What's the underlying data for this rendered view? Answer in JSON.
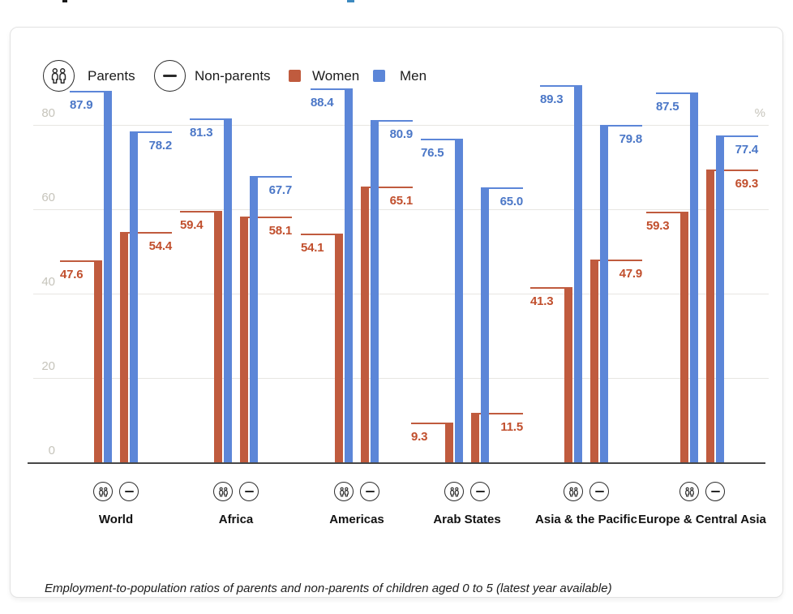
{
  "legend": {
    "parents_label": "Parents",
    "non_parents_label": "Non-parents",
    "women_label": "Women",
    "men_label": "Men",
    "women_color": "#C05B3E",
    "men_color": "#5C86D8"
  },
  "chart_data": {
    "type": "bar",
    "caption": "Employment-to-population ratios of parents and non-parents of children aged 0 to 5 (latest year available)",
    "unit": "%",
    "y_ticks": [
      0,
      20,
      40,
      60,
      80
    ],
    "ylim": [
      0,
      95
    ],
    "grid": true,
    "legend_position": "top",
    "categories": [
      "World",
      "Africa",
      "Americas",
      "Arab States",
      "Asia & the Pacific",
      "Europe & Central Asia"
    ],
    "series": [
      {
        "name": "Parents - Women",
        "group": "parents",
        "sex": "women",
        "values": [
          47.6,
          59.4,
          54.1,
          9.3,
          41.3,
          59.3
        ]
      },
      {
        "name": "Parents - Men",
        "group": "parents",
        "sex": "men",
        "values": [
          87.9,
          81.3,
          88.4,
          76.5,
          89.3,
          87.5
        ]
      },
      {
        "name": "Non-parents - Women",
        "group": "non_parents",
        "sex": "women",
        "values": [
          54.4,
          58.1,
          65.1,
          11.5,
          47.9,
          69.3
        ]
      },
      {
        "name": "Non-parents - Men",
        "group": "non_parents",
        "sex": "men",
        "values": [
          78.2,
          67.7,
          80.9,
          65.0,
          79.8,
          77.4
        ]
      }
    ],
    "colors": {
      "women_bar": "#C05B3E",
      "men_bar": "#5C86D8",
      "women_label": "#C14F2D",
      "men_label": "#4B77C7"
    }
  }
}
